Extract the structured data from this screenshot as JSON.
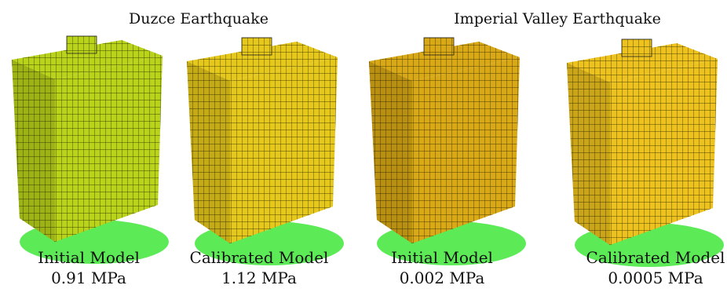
{
  "groups": [
    {
      "title": "Duzce Earthquake",
      "panels": [
        {
          "label": "Initial Model",
          "value": "0.91 MPa"
        },
        {
          "label": "Calibrated Model",
          "value": "1.12 MPa"
        }
      ]
    },
    {
      "title": "Imperial Valley Earthquake",
      "panels": [
        {
          "label": "Initial Model",
          "value": "0.002 MPa"
        },
        {
          "label": "Calibrated Model",
          "value": "0.0005 MPa"
        }
      ]
    }
  ]
}
